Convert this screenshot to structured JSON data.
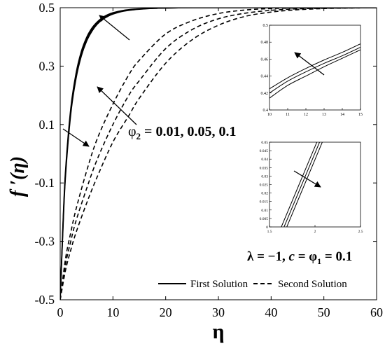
{
  "chart_data": {
    "type": "line",
    "xlabel": "η",
    "ylabel": "f ′(η)",
    "xlim": [
      0,
      60
    ],
    "ylim": [
      -0.5,
      0.5
    ],
    "xticks": [
      0,
      10,
      20,
      30,
      40,
      50,
      60
    ],
    "yticks": [
      -0.5,
      -0.3,
      -0.1,
      0.1,
      0.3,
      0.5
    ],
    "x_tick_labels": [
      "0",
      "10",
      "20",
      "30",
      "40",
      "50",
      "60"
    ],
    "y_tick_labels": [
      "-0.5",
      "-0.3",
      "-0.1",
      "0.1",
      "0.3",
      "0.5"
    ],
    "legend": [
      {
        "label": "First Solution",
        "style": "solid"
      },
      {
        "label": "Second Solution",
        "style": "dashed"
      }
    ],
    "legend_placement": "bottom-right",
    "annotations": {
      "phi2_prefix": "φ",
      "phi2_sub": "2",
      "phi2_values": " = 0.01, 0.05, 0.1",
      "params_lambda": "λ = −1, ",
      "params_c": "c",
      "params_eq": " = φ",
      "params_sub": "1",
      "params_val": " = 0.1"
    },
    "series_groups": [
      {
        "style": "solid",
        "x": [
          0,
          0.5,
          1,
          2,
          3,
          4,
          5,
          6,
          7,
          8,
          9,
          10,
          12,
          14,
          16,
          18,
          20,
          25,
          30,
          40,
          50,
          60
        ],
        "series": [
          {
            "values": [
              -0.5,
              -0.25,
              -0.06,
              0.155,
              0.275,
              0.35,
              0.398,
              0.43,
              0.451,
              0.466,
              0.476,
              0.483,
              0.491,
              0.495,
              0.497,
              0.498,
              0.499,
              0.5,
              0.5,
              0.5,
              0.5,
              0.5
            ]
          },
          {
            "values": [
              -0.5,
              -0.26,
              -0.07,
              0.145,
              0.266,
              0.342,
              0.392,
              0.425,
              0.447,
              0.463,
              0.473,
              0.481,
              0.49,
              0.494,
              0.497,
              0.498,
              0.499,
              0.5,
              0.5,
              0.5,
              0.5,
              0.5
            ]
          },
          {
            "values": [
              -0.5,
              -0.27,
              -0.08,
              0.135,
              0.257,
              0.334,
              0.385,
              0.419,
              0.443,
              0.459,
              0.47,
              0.478,
              0.488,
              0.493,
              0.496,
              0.498,
              0.499,
              0.5,
              0.5,
              0.5,
              0.5,
              0.5
            ]
          }
        ]
      },
      {
        "style": "dashed",
        "x": [
          0,
          1,
          2,
          3,
          5,
          7,
          10,
          13,
          15,
          20,
          25,
          30,
          35,
          40,
          45,
          50,
          55,
          60
        ],
        "series": [
          {
            "values": [
              -0.5,
              -0.36,
              -0.27,
              -0.19,
              -0.06,
              0.05,
              0.17,
              0.27,
              0.32,
              0.41,
              0.455,
              0.48,
              0.492,
              0.497,
              0.499,
              0.5,
              0.5,
              0.5
            ]
          },
          {
            "values": [
              -0.5,
              -0.38,
              -0.3,
              -0.23,
              -0.12,
              -0.02,
              0.1,
              0.2,
              0.25,
              0.36,
              0.425,
              0.462,
              0.481,
              0.491,
              0.496,
              0.498,
              0.499,
              0.5
            ]
          },
          {
            "values": [
              -0.5,
              -0.4,
              -0.33,
              -0.27,
              -0.17,
              -0.08,
              0.04,
              0.13,
              0.19,
              0.31,
              0.39,
              0.44,
              0.47,
              0.485,
              0.493,
              0.497,
              0.499,
              0.5
            ]
          }
        ]
      }
    ],
    "insets": [
      {
        "xlim": [
          10,
          15
        ],
        "ylim": [
          0.4,
          0.5
        ],
        "xticks": [
          10,
          11,
          12,
          13,
          14,
          15
        ],
        "yticks": [
          0.4,
          0.42,
          0.44,
          0.46,
          0.48,
          0.5
        ],
        "x_tick_labels": [
          "10",
          "11",
          "12",
          "13",
          "14",
          "15"
        ],
        "y_tick_labels": [
          "0.4",
          "0.42",
          "0.44",
          "0.46",
          "0.48",
          "0.5"
        ],
        "series": [
          {
            "x": [
              10,
              11,
              12,
              13,
              14,
              15
            ],
            "values": [
              0.425,
              0.438,
              0.449,
              0.459,
              0.468,
              0.478
            ]
          },
          {
            "x": [
              10,
              11,
              12,
              13,
              14,
              15
            ],
            "values": [
              0.42,
              0.434,
              0.445,
              0.455,
              0.464,
              0.474
            ]
          },
          {
            "x": [
              10,
              11,
              12,
              13,
              14,
              15
            ],
            "values": [
              0.414,
              0.429,
              0.44,
              0.451,
              0.461,
              0.471
            ]
          }
        ]
      },
      {
        "xlim": [
          1.5,
          2.5
        ],
        "ylim": [
          0,
          0.05
        ],
        "xticks": [
          1.5,
          2,
          2.5
        ],
        "yticks": [
          0,
          0.005,
          0.01,
          0.015,
          0.02,
          0.025,
          0.03,
          0.035,
          0.04,
          0.045,
          0.05
        ],
        "x_tick_labels": [
          "1.5",
          "2",
          "2.5"
        ],
        "y_tick_labels": [
          "0",
          "0.005",
          "0.01",
          "0.015",
          "0.02",
          "0.025",
          "0.03",
          "0.035",
          "0.04",
          "0.045",
          "0.05"
        ],
        "series": [
          {
            "x": [
              1.69,
              2.08
            ],
            "values": [
              0,
              0.05
            ]
          },
          {
            "x": [
              1.66,
              2.05
            ],
            "values": [
              0,
              0.05
            ]
          },
          {
            "x": [
              1.63,
              2.02
            ],
            "values": [
              0,
              0.05
            ]
          }
        ]
      }
    ]
  }
}
